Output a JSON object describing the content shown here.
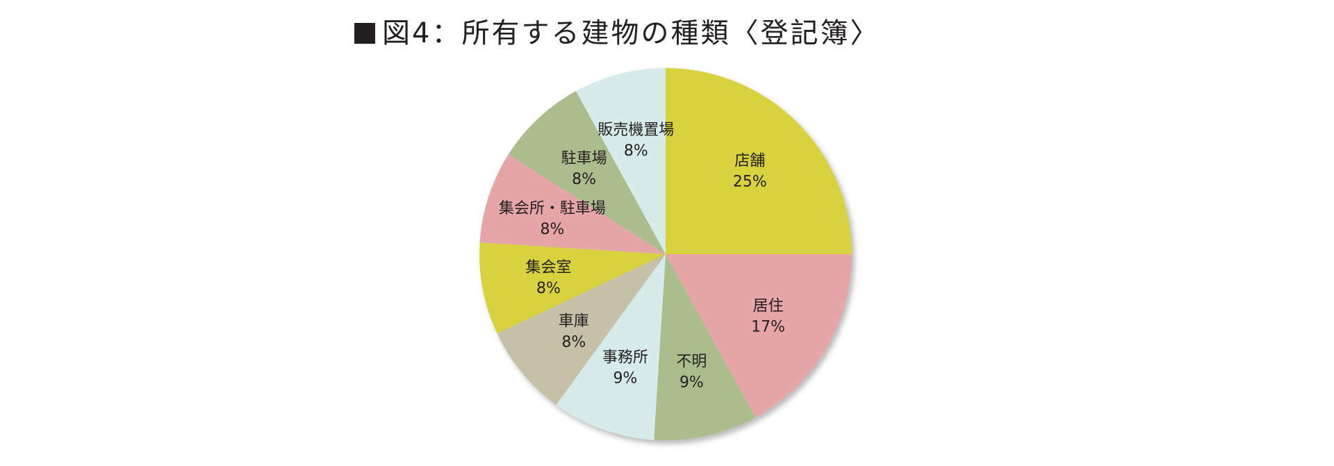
{
  "chart_data": {
    "type": "pie",
    "title": "図4：所有する建物の種類〈登記簿〉",
    "start_angle_deg": 0,
    "direction": "clockwise",
    "slices": [
      {
        "label": "店舗",
        "value": 25,
        "value_label": "25%",
        "color": "#d7d23c"
      },
      {
        "label": "居住",
        "value": 17,
        "value_label": "17%",
        "color": "#e6a6a8"
      },
      {
        "label": "不明",
        "value": 9,
        "value_label": "9%",
        "color": "#abbd8c"
      },
      {
        "label": "事務所",
        "value": 9,
        "value_label": "9%",
        "color": "#d6ebea"
      },
      {
        "label": "車庫",
        "value": 8,
        "value_label": "8%",
        "color": "#c4c1a8"
      },
      {
        "label": "集会室",
        "value": 8,
        "value_label": "8%",
        "color": "#d7d23c"
      },
      {
        "label": "集会所・駐車場",
        "value": 8,
        "value_label": "8%",
        "color": "#e6a6a8"
      },
      {
        "label": "駐車場",
        "value": 8,
        "value_label": "8%",
        "color": "#abbd8c"
      },
      {
        "label": "販売機置場",
        "value": 8,
        "value_label": "8%",
        "color": "#d6ebea"
      }
    ]
  }
}
